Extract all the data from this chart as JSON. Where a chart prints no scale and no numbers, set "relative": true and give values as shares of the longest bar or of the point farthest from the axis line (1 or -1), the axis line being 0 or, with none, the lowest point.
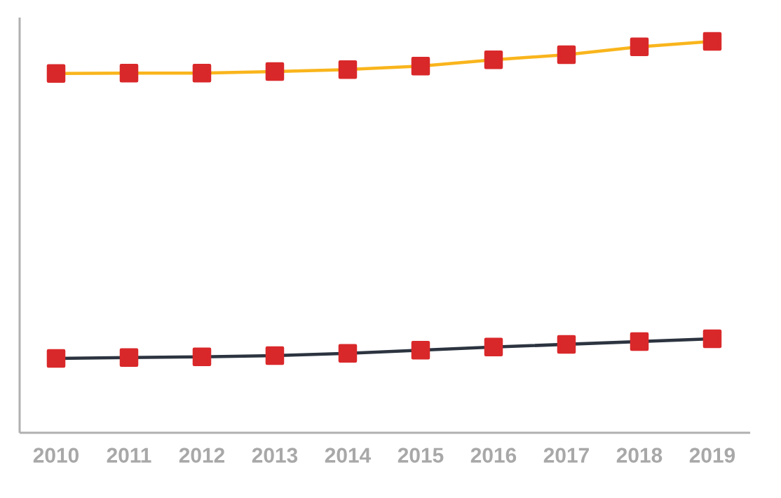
{
  "chart_data": {
    "type": "line",
    "relative": true,
    "marker": "square",
    "tick_labels": "x",
    "categories": [
      "2010",
      "2011",
      "2012",
      "2013",
      "2014",
      "2015",
      "2016",
      "2017",
      "2018",
      "2019"
    ],
    "series": [
      {
        "color": "#f9b51c",
        "values": [
          0.918,
          0.919,
          0.919,
          0.923,
          0.928,
          0.937,
          0.953,
          0.966,
          0.986,
          1
        ]
      },
      {
        "color": "#2c3440",
        "values": [
          0.19,
          0.192,
          0.194,
          0.197,
          0.203,
          0.211,
          0.219,
          0.226,
          0.233,
          0.24
        ]
      }
    ]
  }
}
